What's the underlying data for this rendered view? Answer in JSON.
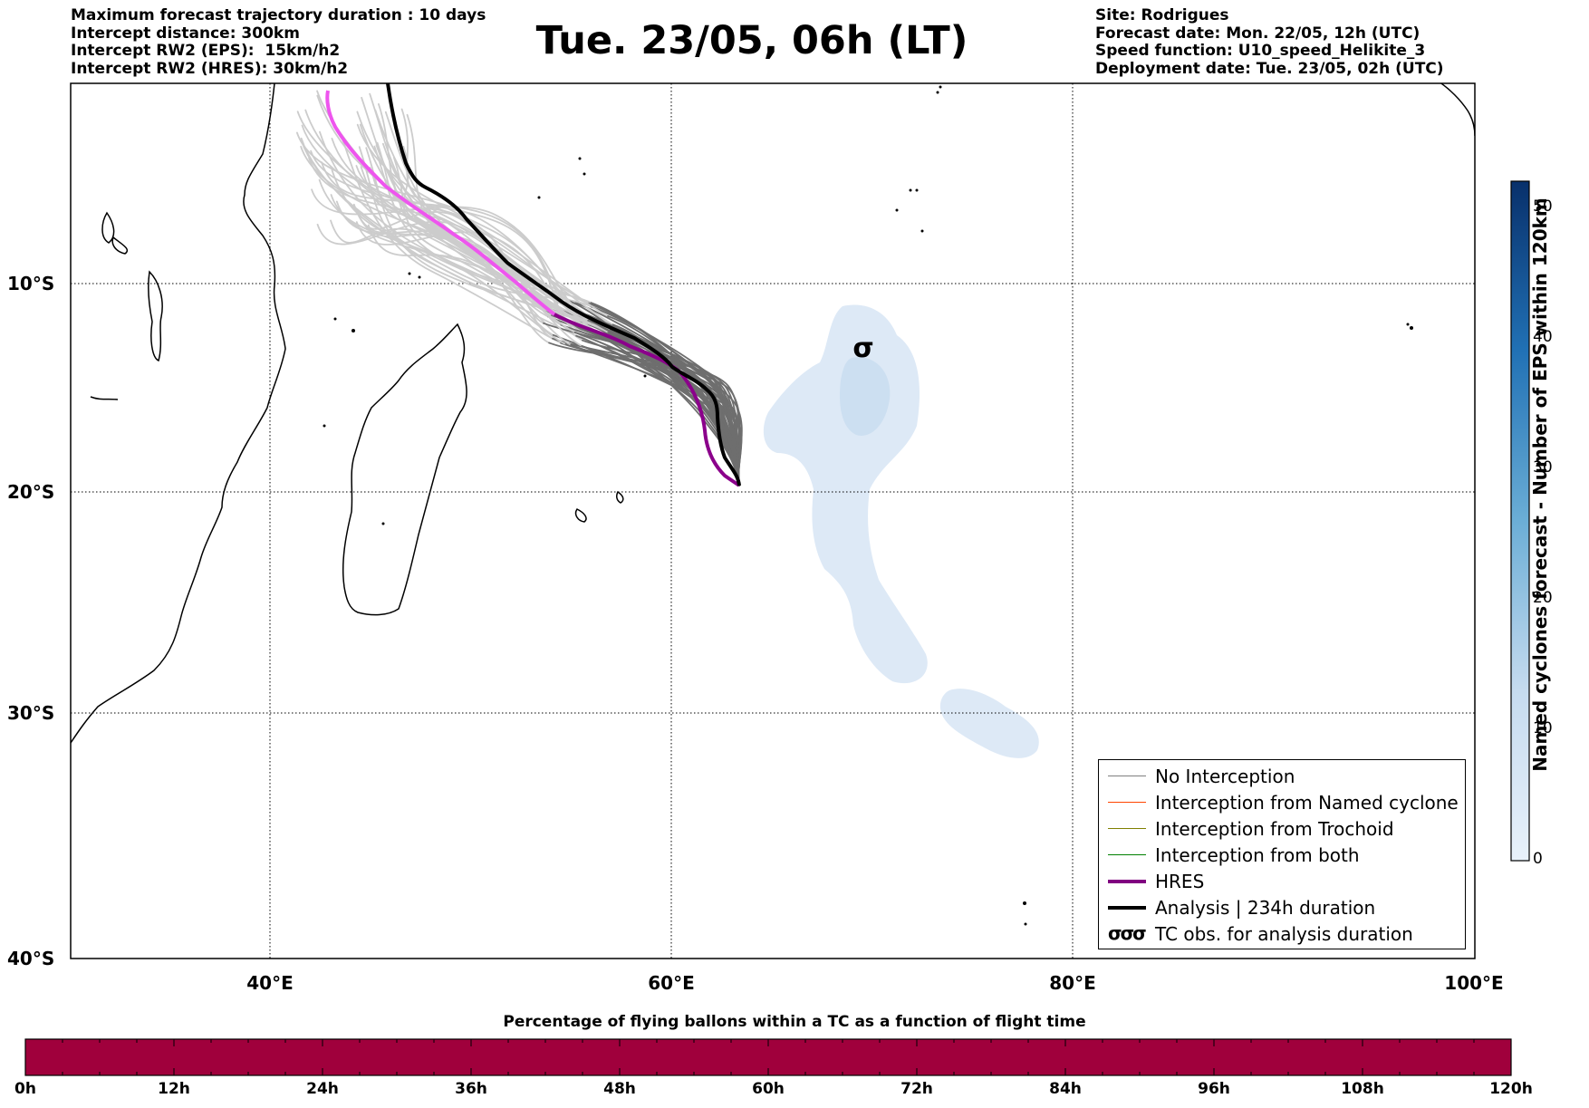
{
  "header_left": [
    "Maximum forecast trajectory duration : 10 days",
    "Intercept distance: 300km",
    "Intercept RW2 (EPS):  15km/h2",
    "Intercept RW2 (HRES): 30km/h2"
  ],
  "title": "Tue. 23/05, 06h (LT)",
  "header_right": [
    "Site: Rodrigues",
    "Forecast date: Mon. 22/05, 12h (UTC)",
    "Speed function: U10_speed_Helikite_3",
    "Deployment date: Tue. 23/05, 02h (UTC)"
  ],
  "map": {
    "lat_labels": [
      "10°S",
      "20°S",
      "30°S",
      "40°S"
    ],
    "lon_labels": [
      "40°E",
      "60°E",
      "80°E",
      "100°E"
    ],
    "tc_symbol": "σ"
  },
  "legend": {
    "items": [
      {
        "label": "No Interception",
        "color": "#808080"
      },
      {
        "label": "Interception from Named cyclone",
        "color": "#ff4500"
      },
      {
        "label": "Interception from Trochoid",
        "color": "#808000"
      },
      {
        "label": "Interception from both",
        "color": "#008000"
      },
      {
        "label": "HRES",
        "color": "#800080"
      },
      {
        "label": "Analysis | 234h duration",
        "color": "#000000"
      },
      {
        "label": "TC obs. for analysis duration",
        "color": "#000000"
      }
    ],
    "tc_symbols": "σσσ"
  },
  "colorbar": {
    "title": "Named cyclones forecast - Number of EPS within 120km",
    "ticks": [
      "0",
      "10",
      "20",
      "30",
      "40",
      "50"
    ],
    "color_low": "#e8f1fa",
    "color_high": "#08306b"
  },
  "time_bar": {
    "title": "Percentage of flying ballons within a TC as a function of flight time",
    "labels": [
      "0h",
      "12h",
      "24h",
      "36h",
      "48h",
      "60h",
      "72h",
      "84h",
      "96h",
      "108h",
      "120h"
    ],
    "color": "#a0003c"
  }
}
